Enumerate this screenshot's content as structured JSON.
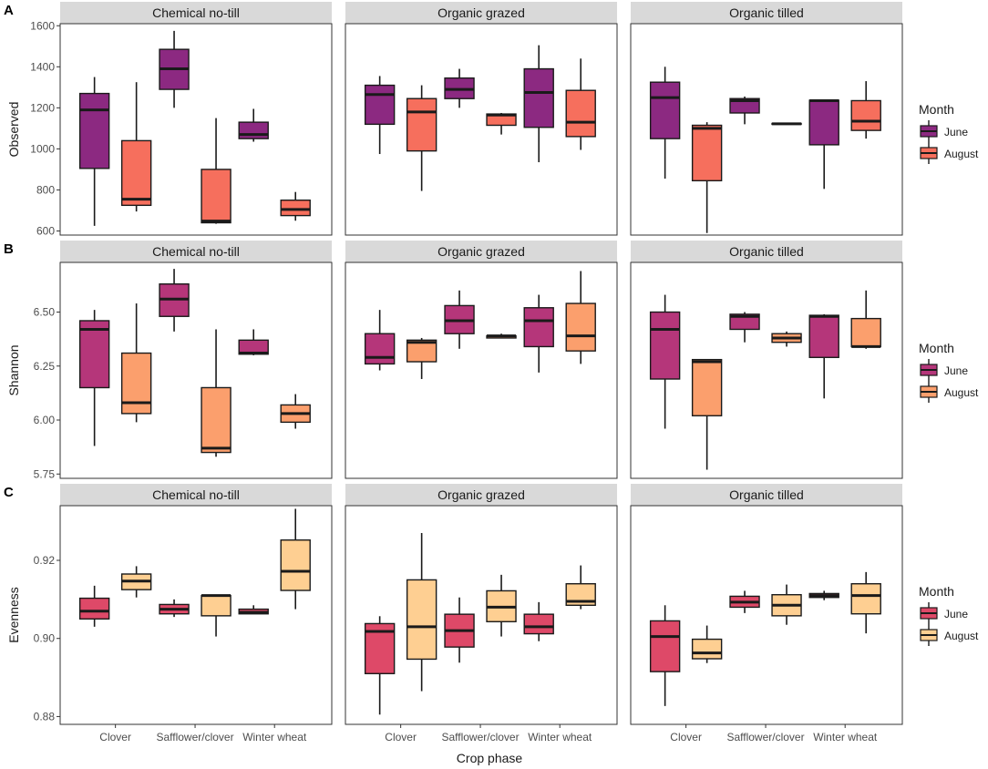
{
  "chart_data": {
    "type": "boxplot",
    "x_axis_label": "Crop phase",
    "categories": [
      "Clover",
      "Safflower/clover",
      "Winter wheat"
    ],
    "facets": [
      "Chemical no-till",
      "Organic grazed",
      "Organic tilled"
    ],
    "legend_title": "Month",
    "series_names": [
      "June",
      "August"
    ],
    "rows": [
      {
        "tag": "A",
        "ylabel": "Observed",
        "ylim": [
          580,
          1610
        ],
        "yticks": [
          600,
          800,
          1000,
          1200,
          1400,
          1600
        ],
        "tick_labels": [
          "600",
          "800",
          "1000",
          "1200",
          "1400",
          "1600"
        ],
        "colors": {
          "June": "#8c2981",
          "August": "#f66f5d"
        },
        "panels": [
          {
            "facet": "Chemical no-till",
            "boxes": [
              {
                "category": "Clover",
                "month": "June",
                "min": 625,
                "q1": 905,
                "median": 1190,
                "q3": 1270,
                "max": 1350
              },
              {
                "category": "Clover",
                "month": "August",
                "min": 695,
                "q1": 725,
                "median": 755,
                "q3": 1040,
                "max": 1325
              },
              {
                "category": "Safflower/clover",
                "month": "June",
                "min": 1200,
                "q1": 1290,
                "median": 1390,
                "q3": 1485,
                "max": 1575
              },
              {
                "category": "Safflower/clover",
                "month": "August",
                "min": 635,
                "q1": 640,
                "median": 648,
                "q3": 900,
                "max": 1150
              },
              {
                "category": "Winter wheat",
                "month": "June",
                "min": 1035,
                "q1": 1050,
                "median": 1070,
                "q3": 1130,
                "max": 1195
              },
              {
                "category": "Winter wheat",
                "month": "August",
                "min": 650,
                "q1": 675,
                "median": 705,
                "q3": 750,
                "max": 790
              }
            ]
          },
          {
            "facet": "Organic grazed",
            "boxes": [
              {
                "category": "Clover",
                "month": "June",
                "min": 975,
                "q1": 1120,
                "median": 1265,
                "q3": 1310,
                "max": 1355
              },
              {
                "category": "Clover",
                "month": "August",
                "min": 795,
                "q1": 990,
                "median": 1180,
                "q3": 1245,
                "max": 1310
              },
              {
                "category": "Safflower/clover",
                "month": "June",
                "min": 1200,
                "q1": 1245,
                "median": 1290,
                "q3": 1345,
                "max": 1390
              },
              {
                "category": "Safflower/clover",
                "month": "August",
                "min": 1070,
                "q1": 1115,
                "median": 1165,
                "q3": 1170,
                "max": 1175
              },
              {
                "category": "Winter wheat",
                "month": "June",
                "min": 935,
                "q1": 1105,
                "median": 1275,
                "q3": 1390,
                "max": 1505
              },
              {
                "category": "Winter wheat",
                "month": "August",
                "min": 995,
                "q1": 1060,
                "median": 1130,
                "q3": 1285,
                "max": 1440
              }
            ]
          },
          {
            "facet": "Organic tilled",
            "boxes": [
              {
                "category": "Clover",
                "month": "June",
                "min": 855,
                "q1": 1050,
                "median": 1250,
                "q3": 1325,
                "max": 1400
              },
              {
                "category": "Clover",
                "month": "August",
                "min": 590,
                "q1": 845,
                "median": 1100,
                "q3": 1115,
                "max": 1130
              },
              {
                "category": "Safflower/clover",
                "month": "June",
                "min": 1120,
                "q1": 1175,
                "median": 1235,
                "q3": 1245,
                "max": 1255
              },
              {
                "category": "Safflower/clover",
                "month": "August",
                "min": 1118,
                "q1": 1120,
                "median": 1122,
                "q3": 1124,
                "max": 1126
              },
              {
                "category": "Winter wheat",
                "month": "June",
                "min": 805,
                "q1": 1020,
                "median": 1235,
                "q3": 1237,
                "max": 1240
              },
              {
                "category": "Winter wheat",
                "month": "August",
                "min": 1050,
                "q1": 1090,
                "median": 1135,
                "q3": 1235,
                "max": 1330
              }
            ]
          }
        ]
      },
      {
        "tag": "B",
        "ylabel": "Shannon",
        "ylim": [
          5.73,
          6.73
        ],
        "yticks": [
          5.75,
          6.0,
          6.25,
          6.5
        ],
        "tick_labels": [
          "5.75",
          "6.00",
          "6.25",
          "6.50"
        ],
        "colors": {
          "June": "#b5367a",
          "August": "#fb9f6d"
        },
        "panels": [
          {
            "facet": "Chemical no-till",
            "boxes": [
              {
                "category": "Clover",
                "month": "June",
                "min": 5.88,
                "q1": 6.15,
                "median": 6.42,
                "q3": 6.46,
                "max": 6.51
              },
              {
                "category": "Clover",
                "month": "August",
                "min": 5.99,
                "q1": 6.03,
                "median": 6.08,
                "q3": 6.31,
                "max": 6.54
              },
              {
                "category": "Safflower/clover",
                "month": "June",
                "min": 6.41,
                "q1": 6.48,
                "median": 6.56,
                "q3": 6.63,
                "max": 6.7
              },
              {
                "category": "Safflower/clover",
                "month": "August",
                "min": 5.83,
                "q1": 5.85,
                "median": 5.87,
                "q3": 6.15,
                "max": 6.42
              },
              {
                "category": "Winter wheat",
                "month": "June",
                "min": 6.3,
                "q1": 6.305,
                "median": 6.31,
                "q3": 6.37,
                "max": 6.42
              },
              {
                "category": "Winter wheat",
                "month": "August",
                "min": 5.96,
                "q1": 5.99,
                "median": 6.03,
                "q3": 6.07,
                "max": 6.12
              }
            ]
          },
          {
            "facet": "Organic grazed",
            "boxes": [
              {
                "category": "Clover",
                "month": "June",
                "min": 6.23,
                "q1": 6.26,
                "median": 6.29,
                "q3": 6.4,
                "max": 6.51
              },
              {
                "category": "Clover",
                "month": "August",
                "min": 6.19,
                "q1": 6.27,
                "median": 6.36,
                "q3": 6.37,
                "max": 6.38
              },
              {
                "category": "Safflower/clover",
                "month": "June",
                "min": 6.33,
                "q1": 6.4,
                "median": 6.46,
                "q3": 6.53,
                "max": 6.6
              },
              {
                "category": "Safflower/clover",
                "month": "August",
                "min": 6.38,
                "q1": 6.38,
                "median": 6.39,
                "q3": 6.39,
                "max": 6.4
              },
              {
                "category": "Winter wheat",
                "month": "June",
                "min": 6.22,
                "q1": 6.34,
                "median": 6.46,
                "q3": 6.52,
                "max": 6.58
              },
              {
                "category": "Winter wheat",
                "month": "August",
                "min": 6.26,
                "q1": 6.32,
                "median": 6.39,
                "q3": 6.54,
                "max": 6.69
              }
            ]
          },
          {
            "facet": "Organic tilled",
            "boxes": [
              {
                "category": "Clover",
                "month": "June",
                "min": 5.96,
                "q1": 6.19,
                "median": 6.42,
                "q3": 6.5,
                "max": 6.58
              },
              {
                "category": "Clover",
                "month": "August",
                "min": 5.77,
                "q1": 6.02,
                "median": 6.27,
                "q3": 6.28,
                "max": 6.28
              },
              {
                "category": "Safflower/clover",
                "month": "June",
                "min": 6.36,
                "q1": 6.42,
                "median": 6.48,
                "q3": 6.49,
                "max": 6.5
              },
              {
                "category": "Safflower/clover",
                "month": "August",
                "min": 6.34,
                "q1": 6.36,
                "median": 6.38,
                "q3": 6.4,
                "max": 6.41
              },
              {
                "category": "Winter wheat",
                "month": "June",
                "min": 6.1,
                "q1": 6.29,
                "median": 6.48,
                "q3": 6.485,
                "max": 6.49
              },
              {
                "category": "Winter wheat",
                "month": "August",
                "min": 6.33,
                "q1": 6.34,
                "median": 6.34,
                "q3": 6.47,
                "max": 6.6
              }
            ]
          }
        ]
      },
      {
        "tag": "C",
        "ylabel": "Evenness",
        "ylim": [
          0.878,
          0.934
        ],
        "yticks": [
          0.88,
          0.9,
          0.92
        ],
        "tick_labels": [
          "0.88",
          "0.90",
          "0.92"
        ],
        "colors": {
          "June": "#de4968",
          "August": "#fecf92"
        },
        "panels": [
          {
            "facet": "Chemical no-till",
            "boxes": [
              {
                "category": "Clover",
                "month": "June",
                "min": 0.903,
                "q1": 0.905,
                "median": 0.907,
                "q3": 0.9103,
                "max": 0.9135
              },
              {
                "category": "Clover",
                "month": "August",
                "min": 0.9105,
                "q1": 0.9125,
                "median": 0.9147,
                "q3": 0.9165,
                "max": 0.9185
              },
              {
                "category": "Safflower/clover",
                "month": "June",
                "min": 0.9055,
                "q1": 0.9063,
                "median": 0.9075,
                "q3": 0.9087,
                "max": 0.91
              },
              {
                "category": "Safflower/clover",
                "month": "August",
                "min": 0.9005,
                "q1": 0.9058,
                "median": 0.911,
                "q3": 0.911,
                "max": 0.911
              },
              {
                "category": "Winter wheat",
                "month": "June",
                "min": 0.9063,
                "q1": 0.9063,
                "median": 0.9067,
                "q3": 0.9075,
                "max": 0.9085
              },
              {
                "category": "Winter wheat",
                "month": "August",
                "min": 0.9075,
                "q1": 0.9123,
                "median": 0.9172,
                "q3": 0.9252,
                "max": 0.9332
              }
            ]
          },
          {
            "facet": "Organic grazed",
            "boxes": [
              {
                "category": "Clover",
                "month": "June",
                "min": 0.8805,
                "q1": 0.891,
                "median": 0.9018,
                "q3": 0.9038,
                "max": 0.9057
              },
              {
                "category": "Clover",
                "month": "August",
                "min": 0.8865,
                "q1": 0.8947,
                "median": 0.903,
                "q3": 0.915,
                "max": 0.927
              },
              {
                "category": "Safflower/clover",
                "month": "June",
                "min": 0.8938,
                "q1": 0.8978,
                "median": 0.902,
                "q3": 0.9062,
                "max": 0.9105
              },
              {
                "category": "Safflower/clover",
                "month": "August",
                "min": 0.9005,
                "q1": 0.9043,
                "median": 0.908,
                "q3": 0.9122,
                "max": 0.9163
              },
              {
                "category": "Winter wheat",
                "month": "June",
                "min": 0.8993,
                "q1": 0.9012,
                "median": 0.903,
                "q3": 0.9062,
                "max": 0.9093
              },
              {
                "category": "Winter wheat",
                "month": "August",
                "min": 0.9075,
                "q1": 0.9085,
                "median": 0.9095,
                "q3": 0.914,
                "max": 0.9187
              }
            ]
          },
          {
            "facet": "Organic tilled",
            "boxes": [
              {
                "category": "Clover",
                "month": "June",
                "min": 0.8827,
                "q1": 0.8915,
                "median": 0.9005,
                "q3": 0.9045,
                "max": 0.9085
              },
              {
                "category": "Clover",
                "month": "August",
                "min": 0.8937,
                "q1": 0.8948,
                "median": 0.8963,
                "q3": 0.8998,
                "max": 0.9033
              },
              {
                "category": "Safflower/clover",
                "month": "June",
                "min": 0.9065,
                "q1": 0.908,
                "median": 0.9093,
                "q3": 0.9108,
                "max": 0.9122
              },
              {
                "category": "Safflower/clover",
                "month": "August",
                "min": 0.9035,
                "q1": 0.9058,
                "median": 0.9085,
                "q3": 0.9112,
                "max": 0.9138
              },
              {
                "category": "Winter wheat",
                "month": "June",
                "min": 0.9098,
                "q1": 0.9105,
                "median": 0.911,
                "q3": 0.9115,
                "max": 0.9122
              },
              {
                "category": "Winter wheat",
                "month": "August",
                "min": 0.9013,
                "q1": 0.9063,
                "median": 0.911,
                "q3": 0.914,
                "max": 0.917
              }
            ]
          }
        ]
      }
    ]
  }
}
